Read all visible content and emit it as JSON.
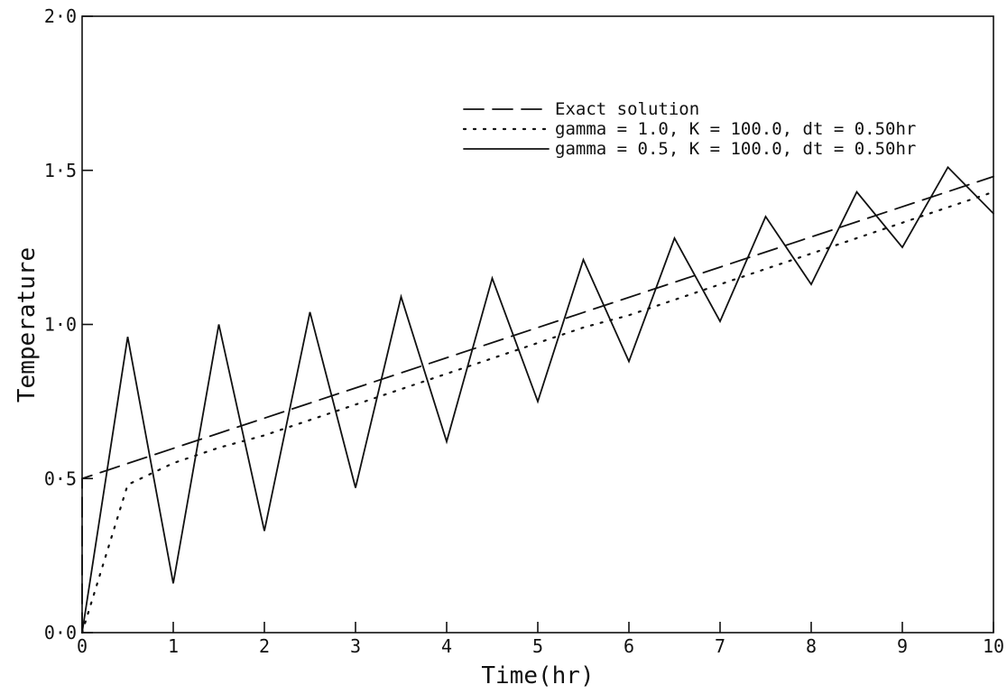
{
  "chart_data": {
    "type": "line",
    "title": "",
    "xlabel": "Time(hr)",
    "ylabel": "Temperature",
    "xlim": [
      0,
      10
    ],
    "ylim": [
      0,
      2
    ],
    "grid": false,
    "legend_position": "top-right",
    "x_ticks": [
      0,
      1,
      2,
      3,
      4,
      5,
      6,
      7,
      8,
      9,
      10
    ],
    "x_tick_labels": [
      "0",
      "1",
      "2",
      "3",
      "4",
      "5",
      "6",
      "7",
      "8",
      "9",
      "10"
    ],
    "y_ticks": [
      0,
      0.5,
      1.0,
      1.5,
      2.0
    ],
    "y_tick_labels": [
      "0·0",
      "0·5",
      "1·0",
      "1·5",
      "2·0"
    ],
    "series": [
      {
        "name": "Exact solution",
        "style": "dashed",
        "x": [
          0,
          0,
          10
        ],
        "y": [
          0,
          0.5,
          1.48
        ]
      },
      {
        "name": "gamma = 1.0, K = 100.0, dt = 0.50hr",
        "style": "dotted",
        "x": [
          0,
          0.5,
          1,
          1.5,
          2,
          2.5,
          3,
          3.5,
          4,
          4.5,
          5,
          5.5,
          6,
          6.5,
          7,
          7.5,
          8,
          8.5,
          9,
          9.5,
          10
        ],
        "y": [
          0,
          0.48,
          0.55,
          0.6,
          0.64,
          0.69,
          0.74,
          0.79,
          0.84,
          0.89,
          0.94,
          0.99,
          1.03,
          1.08,
          1.13,
          1.18,
          1.23,
          1.28,
          1.33,
          1.38,
          1.43
        ]
      },
      {
        "name": "gamma = 0.5, K = 100.0, dt = 0.50hr",
        "style": "solid",
        "x": [
          0,
          0.5,
          1,
          1.5,
          2,
          2.5,
          3,
          3.5,
          4,
          4.5,
          5,
          5.5,
          6,
          6.5,
          7,
          7.5,
          8,
          8.5,
          9,
          9.5,
          10
        ],
        "y": [
          0,
          0.96,
          0.16,
          1.0,
          0.33,
          1.04,
          0.47,
          1.09,
          0.62,
          1.15,
          0.75,
          1.21,
          0.88,
          1.28,
          1.01,
          1.35,
          1.13,
          1.43,
          1.25,
          1.51,
          1.36
        ]
      }
    ]
  }
}
